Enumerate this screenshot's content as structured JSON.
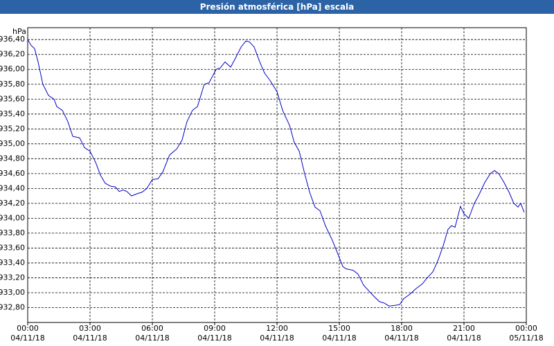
{
  "chart_data": {
    "type": "line",
    "title": "Presión atmosférica [hPa] escala",
    "y_label": "hPa",
    "color": "#0000c8",
    "grid": true,
    "x": [
      0,
      0.17,
      0.33,
      0.5,
      0.73,
      1,
      1.27,
      1.4,
      1.67,
      1.93,
      2.17,
      2.5,
      2.73,
      3,
      3.27,
      3.5,
      3.73,
      4,
      4.23,
      4.4,
      4.6,
      4.77,
      5,
      5.27,
      5.5,
      5.73,
      6,
      6.27,
      6.5,
      6.83,
      7.17,
      7.43,
      7.67,
      7.93,
      8.17,
      8.5,
      8.73,
      9.07,
      9.27,
      9.5,
      9.77,
      10,
      10.27,
      10.5,
      10.67,
      10.9,
      11.17,
      11.4,
      11.67,
      12,
      12.27,
      12.6,
      12.83,
      13.07,
      13.33,
      13.57,
      13.83,
      14.07,
      14.33,
      14.67,
      14.93,
      15.17,
      15.33,
      15.67,
      15.9,
      16.17,
      16.5,
      16.67,
      16.93,
      17.17,
      17.4,
      17.67,
      17.9,
      18.1,
      18.4,
      18.67,
      19,
      19.23,
      19.5,
      19.73,
      20,
      20.23,
      20.4,
      20.57,
      20.83,
      21,
      21.23,
      21.5,
      21.73,
      22,
      22.27,
      22.47,
      22.67,
      22.93,
      23.17,
      23.4,
      23.6,
      23.73,
      23.9
    ],
    "values": [
      936.4,
      936.32,
      936.28,
      936.1,
      935.8,
      935.65,
      935.6,
      935.5,
      935.45,
      935.3,
      935.1,
      935.08,
      934.95,
      934.9,
      934.75,
      934.58,
      934.47,
      934.43,
      934.42,
      934.36,
      934.38,
      934.36,
      934.3,
      934.33,
      934.35,
      934.4,
      934.52,
      934.53,
      934.62,
      934.85,
      934.93,
      935.05,
      935.3,
      935.45,
      935.5,
      935.8,
      935.82,
      936.0,
      936.02,
      936.1,
      936.03,
      936.15,
      936.3,
      936.38,
      936.37,
      936.3,
      936.1,
      935.95,
      935.85,
      935.7,
      935.45,
      935.25,
      935.02,
      934.9,
      934.6,
      934.35,
      934.15,
      934.1,
      933.9,
      933.7,
      933.52,
      933.35,
      933.32,
      933.3,
      933.25,
      933.1,
      933.0,
      932.95,
      932.88,
      932.86,
      932.82,
      932.83,
      932.84,
      932.92,
      932.98,
      933.05,
      933.12,
      933.2,
      933.28,
      933.42,
      933.63,
      933.85,
      933.9,
      933.88,
      934.16,
      934.06,
      934.0,
      934.2,
      934.32,
      934.48,
      934.6,
      934.64,
      934.6,
      934.48,
      934.35,
      934.2,
      934.15,
      934.2,
      934.08
    ],
    "xlim": [
      0,
      24
    ],
    "xticks": [
      {
        "value": 0,
        "label": "00:00 04/11/18"
      },
      {
        "value": 3,
        "label": "03:00 04/11/18"
      },
      {
        "value": 6,
        "label": "06:00 04/11/18"
      },
      {
        "value": 9,
        "label": "09:00 04/11/18"
      },
      {
        "value": 12,
        "label": "12:00 04/11/18"
      },
      {
        "value": 15,
        "label": "15:00 04/11/18"
      },
      {
        "value": 18,
        "label": "18:00 04/11/18"
      },
      {
        "value": 21,
        "label": "21:00 04/11/18"
      },
      {
        "value": 24,
        "label": "00:00 05/11/18"
      }
    ],
    "ylim": [
      932.6,
      936.56
    ],
    "yticks": [
      {
        "value": 932.8,
        "label": "932,80"
      },
      {
        "value": 933.0,
        "label": "933,00"
      },
      {
        "value": 933.2,
        "label": "933,20"
      },
      {
        "value": 933.4,
        "label": "933,40"
      },
      {
        "value": 933.6,
        "label": "933,60"
      },
      {
        "value": 933.8,
        "label": "933,80"
      },
      {
        "value": 934.0,
        "label": "934,00"
      },
      {
        "value": 934.2,
        "label": "934,20"
      },
      {
        "value": 934.4,
        "label": "934,40"
      },
      {
        "value": 934.6,
        "label": "934,60"
      },
      {
        "value": 934.8,
        "label": "934,80"
      },
      {
        "value": 935.0,
        "label": "935,00"
      },
      {
        "value": 935.2,
        "label": "935,20"
      },
      {
        "value": 935.4,
        "label": "935,40"
      },
      {
        "value": 935.6,
        "label": "935,60"
      },
      {
        "value": 935.8,
        "label": "935,80"
      },
      {
        "value": 936.0,
        "label": "936,00"
      },
      {
        "value": 936.2,
        "label": "936,20"
      },
      {
        "value": 936.4,
        "label": "936,40"
      }
    ]
  }
}
